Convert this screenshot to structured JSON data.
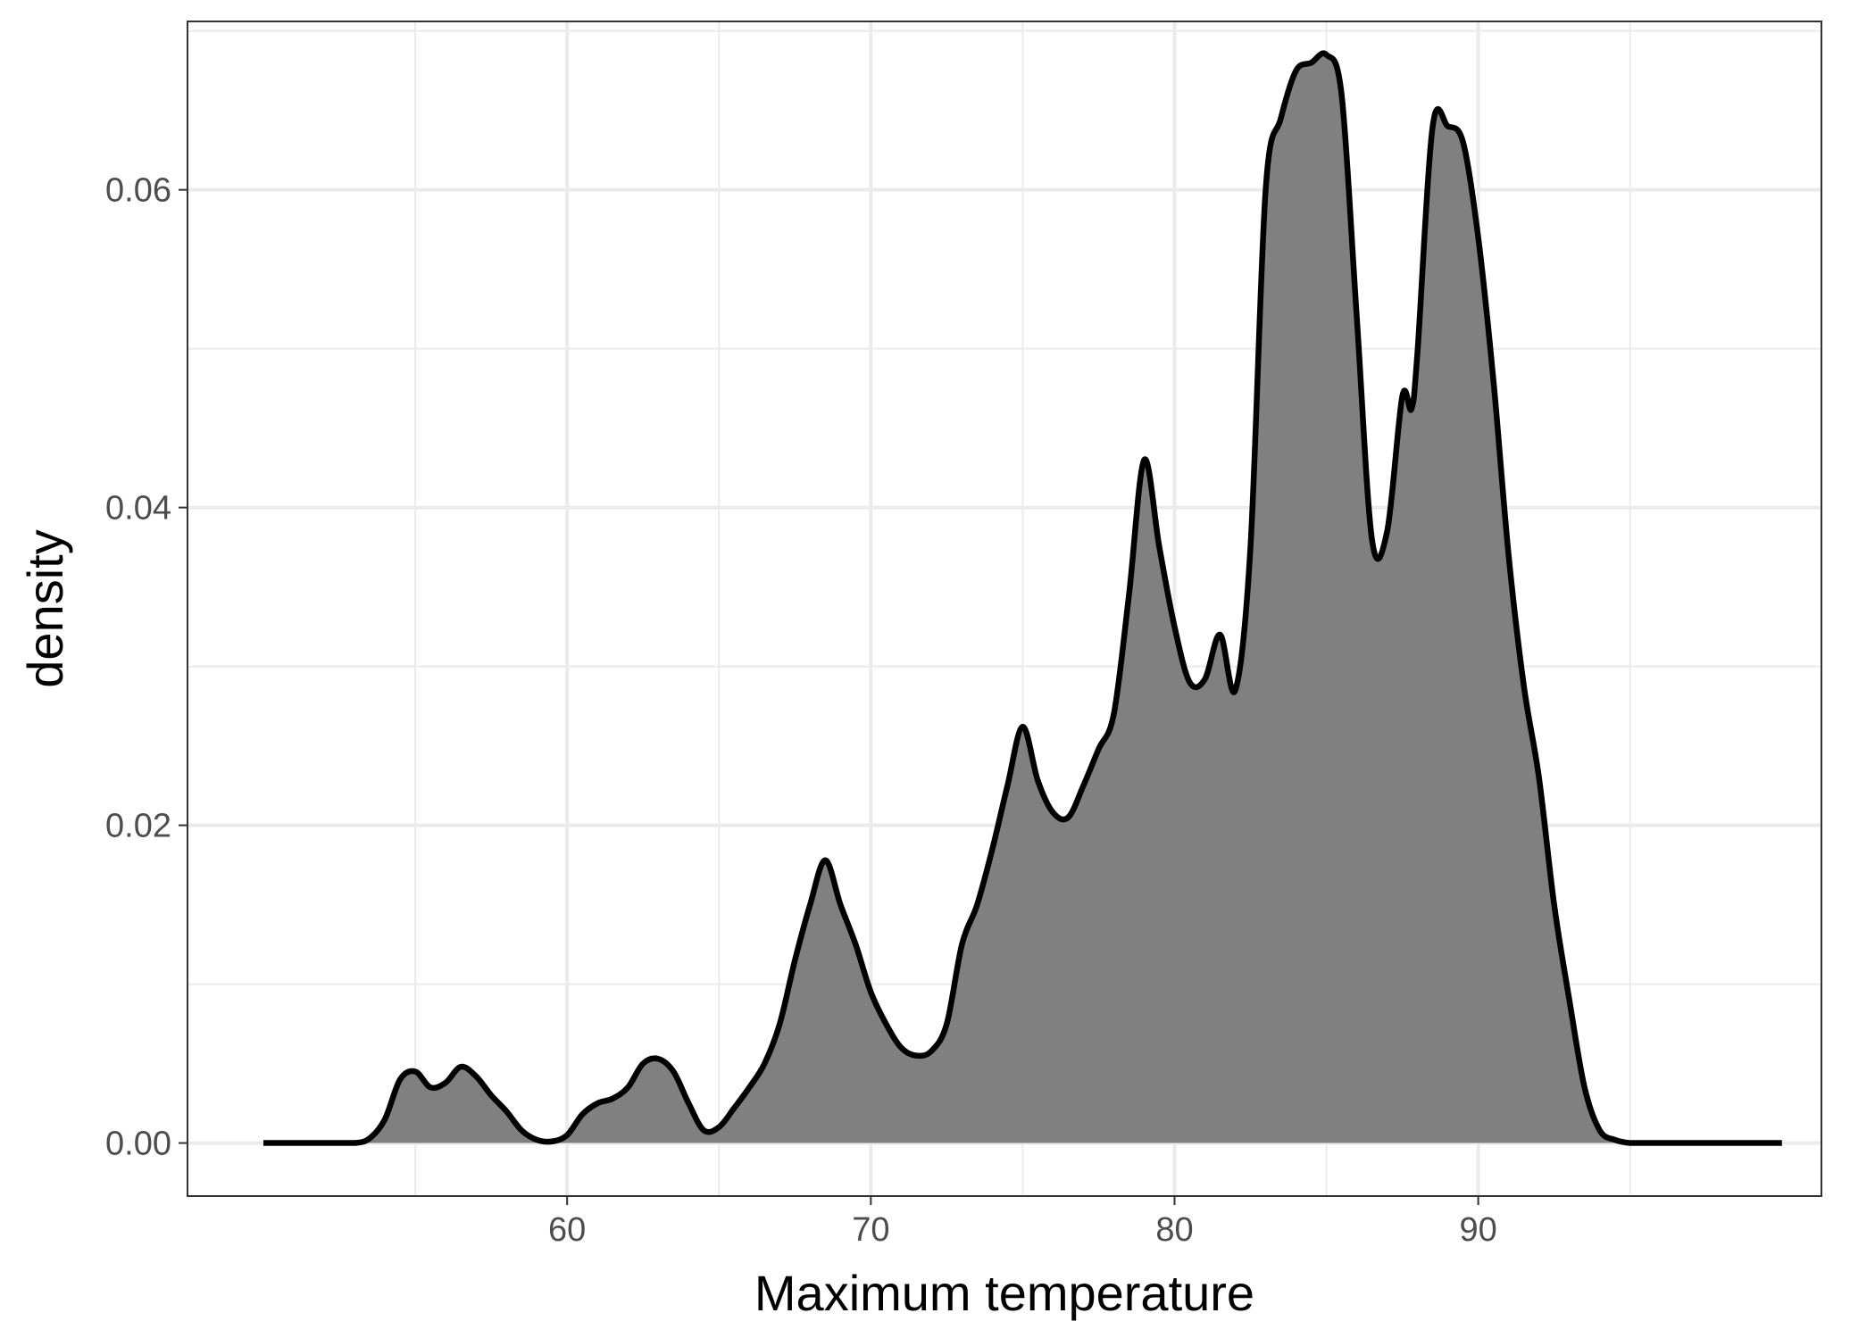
{
  "chart_data": {
    "type": "area",
    "title": "",
    "xlabel": "Maximum temperature",
    "ylabel": "density",
    "xlim": [
      50,
      100
    ],
    "ylim": [
      0,
      0.07
    ],
    "x_ticks": [
      60,
      70,
      80,
      90
    ],
    "x_tick_labels": [
      "60",
      "70",
      "80",
      "90"
    ],
    "y_ticks": [
      0,
      0.02,
      0.04,
      0.06
    ],
    "y_tick_labels": [
      "0.00",
      "0.02",
      "0.04",
      "0.06"
    ],
    "grid": true,
    "legend": "none",
    "colors": {
      "fill": "#808080",
      "line": "#000000",
      "grid": "#ebebeb",
      "panel_border": "#333333"
    },
    "series": [
      {
        "x": [
          50,
          51,
          52,
          53,
          53.5,
          54,
          54.5,
          55,
          55.5,
          56,
          56.5,
          57,
          57.5,
          58,
          58.5,
          59,
          59.5,
          60,
          60.5,
          61,
          61.5,
          62,
          62.5,
          63,
          63.5,
          64,
          64.5,
          65,
          65.5,
          66,
          66.5,
          67,
          67.5,
          68,
          68.5,
          69,
          69.5,
          70,
          70.5,
          71,
          71.5,
          72,
          72.5,
          73,
          73.5,
          74,
          74.5,
          75,
          75.5,
          76,
          76.5,
          77,
          77.5,
          78,
          78.5,
          79,
          79.5,
          80,
          80.5,
          81,
          81.5,
          82,
          82.5,
          83,
          83.5,
          84,
          84.5,
          85,
          85.5,
          86,
          86.5,
          87,
          87.5,
          87.8,
          88,
          88.5,
          89,
          89.5,
          90,
          90.5,
          91,
          91.5,
          92,
          92.5,
          93,
          93.5,
          94,
          94.5,
          95,
          95.5,
          96,
          96.5,
          97,
          97.5,
          98,
          98.5,
          99,
          100
        ],
        "y": [
          0,
          0,
          0,
          0,
          0.0003,
          0.0015,
          0.004,
          0.0045,
          0.0035,
          0.0038,
          0.0048,
          0.0042,
          0.003,
          0.002,
          0.0008,
          0.0002,
          0.0001,
          0.0005,
          0.0018,
          0.0025,
          0.0028,
          0.0035,
          0.005,
          0.0053,
          0.0045,
          0.0025,
          0.0008,
          0.001,
          0.0022,
          0.0035,
          0.005,
          0.0075,
          0.0115,
          0.015,
          0.0178,
          0.015,
          0.0125,
          0.0095,
          0.0075,
          0.006,
          0.0055,
          0.0058,
          0.0075,
          0.0125,
          0.015,
          0.0185,
          0.0225,
          0.0262,
          0.0228,
          0.0208,
          0.0205,
          0.0225,
          0.0248,
          0.027,
          0.0345,
          0.043,
          0.0375,
          0.0325,
          0.029,
          0.0292,
          0.032,
          0.0285,
          0.0375,
          0.06,
          0.0645,
          0.0675,
          0.068,
          0.0685,
          0.066,
          0.052,
          0.038,
          0.0385,
          0.047,
          0.0462,
          0.0498,
          0.064,
          0.064,
          0.063,
          0.057,
          0.048,
          0.037,
          0.0288,
          0.023,
          0.015,
          0.009,
          0.0035,
          0.0008,
          0.0002,
          0,
          0,
          0,
          0,
          0,
          0,
          0,
          0,
          0,
          0
        ]
      }
    ]
  }
}
